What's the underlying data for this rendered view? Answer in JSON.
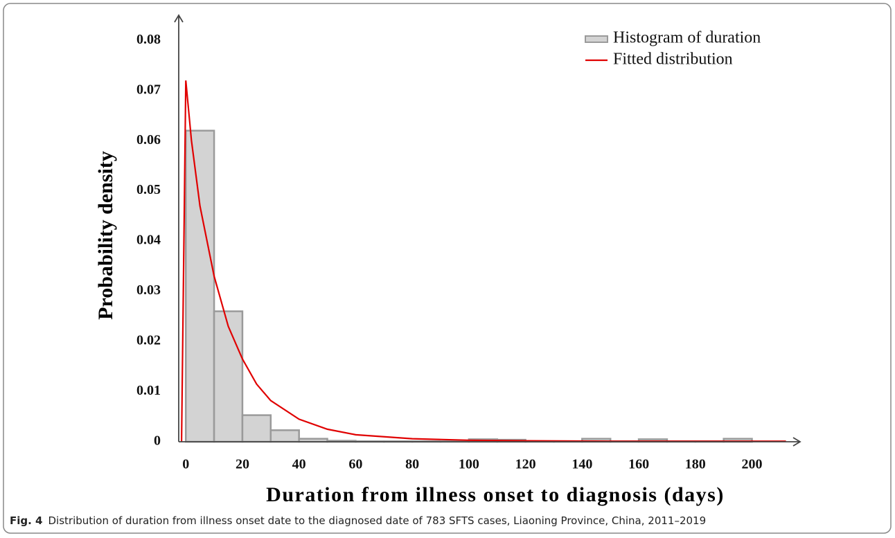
{
  "chart_data": {
    "type": "histogram",
    "xlabel": "Duration from illness onset to diagnosis (days)",
    "ylabel": "Probability density",
    "caption": {
      "label": "Fig. 4",
      "text": "Distribution of duration from illness onset date to the diagnosed date of 783 SFTS cases, Liaoning Province, China, 2011–2019"
    },
    "xlim": [
      -2.5,
      217
    ],
    "ylim": [
      0,
      0.085
    ],
    "xticks": [
      0,
      20,
      40,
      60,
      80,
      100,
      120,
      140,
      160,
      180,
      200
    ],
    "yticks": [
      0,
      0.01,
      0.02,
      0.03,
      0.04,
      0.05,
      0.06,
      0.07,
      0.08
    ],
    "grid": false,
    "legend": "upper right",
    "series": [
      {
        "name": "Histogram of duration",
        "type": "histogram",
        "color": "#d3d3d3",
        "edgecolor": "#9a9a9a",
        "bins": [
          0,
          10,
          20,
          30,
          40,
          50,
          60,
          70,
          80,
          90,
          100,
          110,
          120,
          130,
          140,
          150,
          160,
          170,
          180,
          190,
          200
        ],
        "counts": [
          0.062,
          0.026,
          0.0053,
          0.0023,
          0.0006,
          0.0002,
          0.0001,
          0.0001,
          0.0001,
          0.0001,
          0.0005,
          0.0004,
          0.0001,
          0.0001,
          0.0006,
          0.0001,
          0.0005,
          0.0001,
          0.0001,
          0.0006
        ]
      },
      {
        "name": "Fitted distribution",
        "type": "line",
        "color": "#e00000",
        "x": [
          -1.5,
          0,
          2,
          5,
          10,
          15,
          20,
          25,
          30,
          40,
          50,
          60,
          80,
          100,
          120,
          150,
          200,
          212
        ],
        "y": [
          0,
          0.072,
          0.06,
          0.047,
          0.033,
          0.023,
          0.0165,
          0.0115,
          0.0082,
          0.0045,
          0.0025,
          0.0014,
          0.0006,
          0.0003,
          0.0002,
          0.0001,
          0.0001,
          0.0001
        ]
      }
    ]
  }
}
